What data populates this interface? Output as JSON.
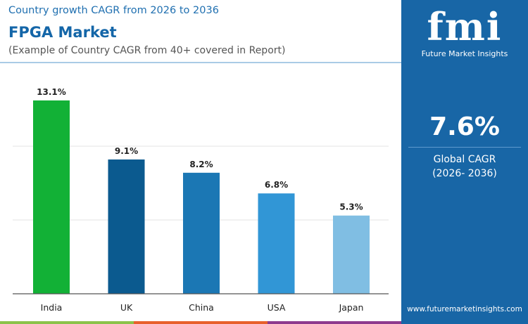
{
  "header": {
    "subtitle": "Country growth CAGR from 2026 to 2036",
    "title": "FPGA Market",
    "note": "(Example of Country CAGR from 40+ covered in Report)"
  },
  "panel": {
    "logo_text": "fmi",
    "logo_name": "Future Market Insights",
    "value": "7.6%",
    "label": "Global CAGR",
    "period": "(2026- 2036)",
    "url": "www.futuremarketinsights.com"
  },
  "chart_data": {
    "type": "bar",
    "categories": [
      "India",
      "UK",
      "China",
      "USA",
      "Japan"
    ],
    "values": [
      13.1,
      9.1,
      8.2,
      6.8,
      5.3
    ],
    "labels": [
      "13.1%",
      "9.1%",
      "8.2%",
      "6.8%",
      "5.3%"
    ],
    "colors": [
      "#12b136",
      "#0b5a8f",
      "#1b77b4",
      "#3196d6",
      "#80bee3"
    ],
    "ylim": [
      0,
      14
    ],
    "grid": true,
    "gridlines": [
      5,
      10
    ]
  },
  "strip_colors": [
    "#8bc34a",
    "#e8602c",
    "#8e3a8e"
  ]
}
